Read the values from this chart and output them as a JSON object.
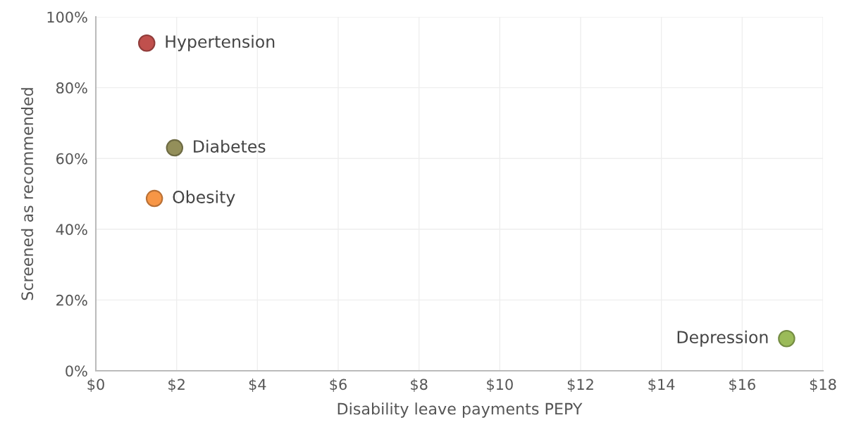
{
  "chart_data": {
    "type": "scatter",
    "xlabel": "Disability leave payments PEPY",
    "ylabel": "Screened as recommended",
    "series": [
      {
        "name": "Hypertension",
        "color": "#c0504d",
        "x": [
          1.26
        ],
        "values": [
          92.6
        ]
      },
      {
        "name": "Diabetes",
        "color": "#938f5a",
        "x": [
          1.95
        ],
        "values": [
          63
        ]
      },
      {
        "name": "Obesity",
        "color": "#f79646",
        "x": [
          1.45
        ],
        "values": [
          48.7
        ]
      },
      {
        "name": "Depression",
        "color": "#9bbb59",
        "x": [
          17.1
        ],
        "values": [
          9.1
        ]
      }
    ],
    "xlim": [
      0,
      18
    ],
    "xticks": [
      {
        "value": 0,
        "label": "$0"
      },
      {
        "value": 2,
        "label": "$2"
      },
      {
        "value": 4,
        "label": "$4"
      },
      {
        "value": 6,
        "label": "$6"
      },
      {
        "value": 8,
        "label": "$8"
      },
      {
        "value": 10,
        "label": "$10"
      },
      {
        "value": 12,
        "label": "$12"
      },
      {
        "value": 14,
        "label": "$14"
      },
      {
        "value": 16,
        "label": "$16"
      },
      {
        "value": 18,
        "label": "$18"
      }
    ],
    "ylim": [
      0,
      100
    ],
    "yticks": [
      {
        "value": 0,
        "label": "0%"
      },
      {
        "value": 20,
        "label": "20%"
      },
      {
        "value": 40,
        "label": "40%"
      },
      {
        "value": 60,
        "label": "60%"
      },
      {
        "value": 80,
        "label": "80%"
      },
      {
        "value": 100,
        "label": "100%"
      }
    ],
    "grid": true,
    "marker": "circle"
  }
}
